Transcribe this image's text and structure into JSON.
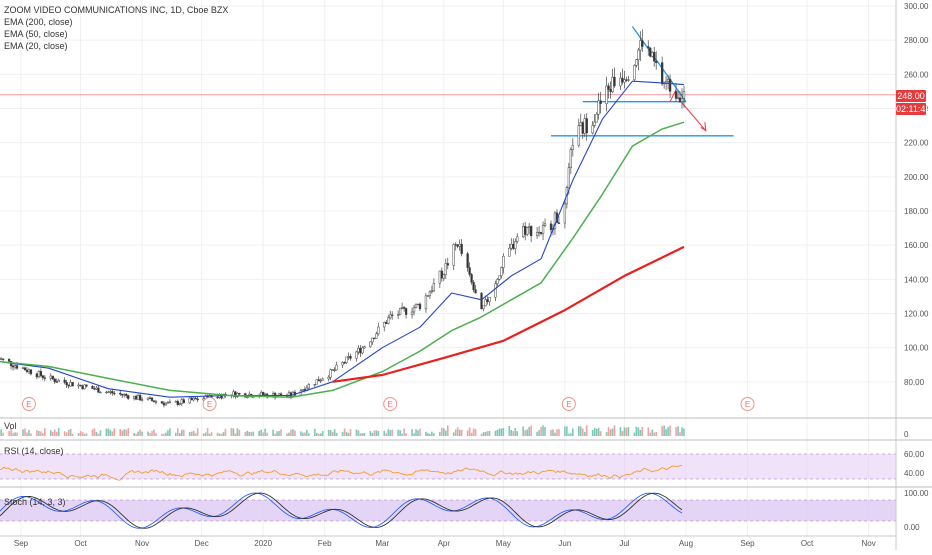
{
  "legend": {
    "title": "ZOOM VIDEO COMMUNICATIONS INC, 1D, Cboe BZX",
    "ema200": "EMA (200, close)",
    "ema50": "EMA (50, close)",
    "ema20": "EMA (20, close)"
  },
  "panes": {
    "vol_label": "Vol",
    "rsi_label": "RSI (14, close)",
    "stoch_label": "Stoch (14, 3, 3)"
  },
  "price_tag": "248.00",
  "time_tag": "02:11:42",
  "earnings_marker": "E",
  "colors": {
    "ema200": "#e8201e",
    "ema50": "#4caf50",
    "ema20": "#2346c9",
    "up_candle": "#4a4a4a",
    "down_candle": "#333333",
    "trendline": "#2196f3",
    "rsi_band": "#e6cff5",
    "stoch_band": "#d9c3f2"
  },
  "chart_data": [
    {
      "type": "line",
      "title": "ZOOM VIDEO COMMUNICATIONS INC, 1D, Cboe BZX",
      "x_ticks": [
        "Sep",
        "Oct",
        "Nov",
        "Dec",
        "2020",
        "Feb",
        "Mar",
        "Apr",
        "May",
        "Jun",
        "Jul",
        "Aug",
        "Sep",
        "Oct",
        "Nov"
      ],
      "y_ticks": [
        "300.00",
        "280.00",
        "260.00",
        "240.00",
        "220.00",
        "200.00",
        "180.00",
        "160.00",
        "140.00",
        "120.00",
        "100.00",
        "80.00"
      ],
      "ylim": [
        60,
        300
      ],
      "last_price": 248.0,
      "series": [
        {
          "name": "EMA (20, close)",
          "x": [
            "2019-08-20",
            "2019-09-15",
            "2019-10-15",
            "2019-11-15",
            "2019-12-15",
            "2020-01-15",
            "2020-02-05",
            "2020-03-01",
            "2020-03-20",
            "2020-04-05",
            "2020-04-20",
            "2020-05-05",
            "2020-05-20",
            "2020-06-05",
            "2020-06-20",
            "2020-07-05",
            "2020-07-20",
            "2020-07-31"
          ],
          "values": [
            92,
            88,
            76,
            71,
            72,
            72,
            80,
            100,
            112,
            132,
            128,
            142,
            152,
            198,
            234,
            256,
            255,
            254
          ]
        },
        {
          "name": "EMA (50, close)",
          "x": [
            "2019-08-20",
            "2019-09-15",
            "2019-10-15",
            "2019-11-15",
            "2019-12-15",
            "2020-01-15",
            "2020-02-05",
            "2020-03-01",
            "2020-03-20",
            "2020-04-05",
            "2020-04-20",
            "2020-05-05",
            "2020-05-20",
            "2020-06-05",
            "2020-06-20",
            "2020-07-05",
            "2020-07-20",
            "2020-07-31"
          ],
          "values": [
            92,
            89,
            82,
            75,
            72,
            71,
            75,
            86,
            98,
            110,
            118,
            128,
            138,
            164,
            190,
            218,
            228,
            232
          ]
        },
        {
          "name": "EMA (200, close)",
          "x": [
            "2020-02-05",
            "2020-03-01",
            "2020-04-01",
            "2020-05-01",
            "2020-06-01",
            "2020-07-01",
            "2020-07-31"
          ],
          "values": [
            80,
            84,
            94,
            104,
            122,
            142,
            159
          ]
        },
        {
          "name": "Price",
          "x": [
            "2019-08-20",
            "2019-09-15",
            "2019-10-15",
            "2019-11-15",
            "2019-12-15",
            "2020-01-15",
            "2020-02-05",
            "2020-02-20",
            "2020-03-05",
            "2020-03-20",
            "2020-04-01",
            "2020-04-08",
            "2020-04-20",
            "2020-05-01",
            "2020-05-10",
            "2020-05-20",
            "2020-06-01",
            "2020-06-05",
            "2020-06-15",
            "2020-06-25",
            "2020-07-05",
            "2020-07-10",
            "2020-07-20",
            "2020-07-31"
          ],
          "values": [
            94,
            82,
            74,
            67,
            73,
            72,
            86,
            100,
            118,
            125,
            145,
            162,
            120,
            150,
            170,
            168,
            180,
            222,
            235,
            255,
            265,
            280,
            256,
            248
          ]
        }
      ],
      "annotations": {
        "support_upper": 244,
        "support_lower": 224,
        "resistance_start": 288,
        "earnings_dates": [
          "2019-09-05",
          "2019-12-05",
          "2020-03-05",
          "2020-06-03",
          "2020-09-01"
        ]
      }
    },
    {
      "type": "bar",
      "title": "Vol",
      "y_ticks": [
        "0"
      ]
    },
    {
      "type": "line",
      "title": "RSI (14, close)",
      "y_ticks": [
        "60.00",
        "40.00"
      ],
      "band": [
        30,
        70
      ]
    },
    {
      "type": "line",
      "title": "Stoch (14, 3, 3)",
      "y_ticks": [
        "100.00",
        "0.00"
      ],
      "band": [
        20,
        80
      ]
    }
  ]
}
